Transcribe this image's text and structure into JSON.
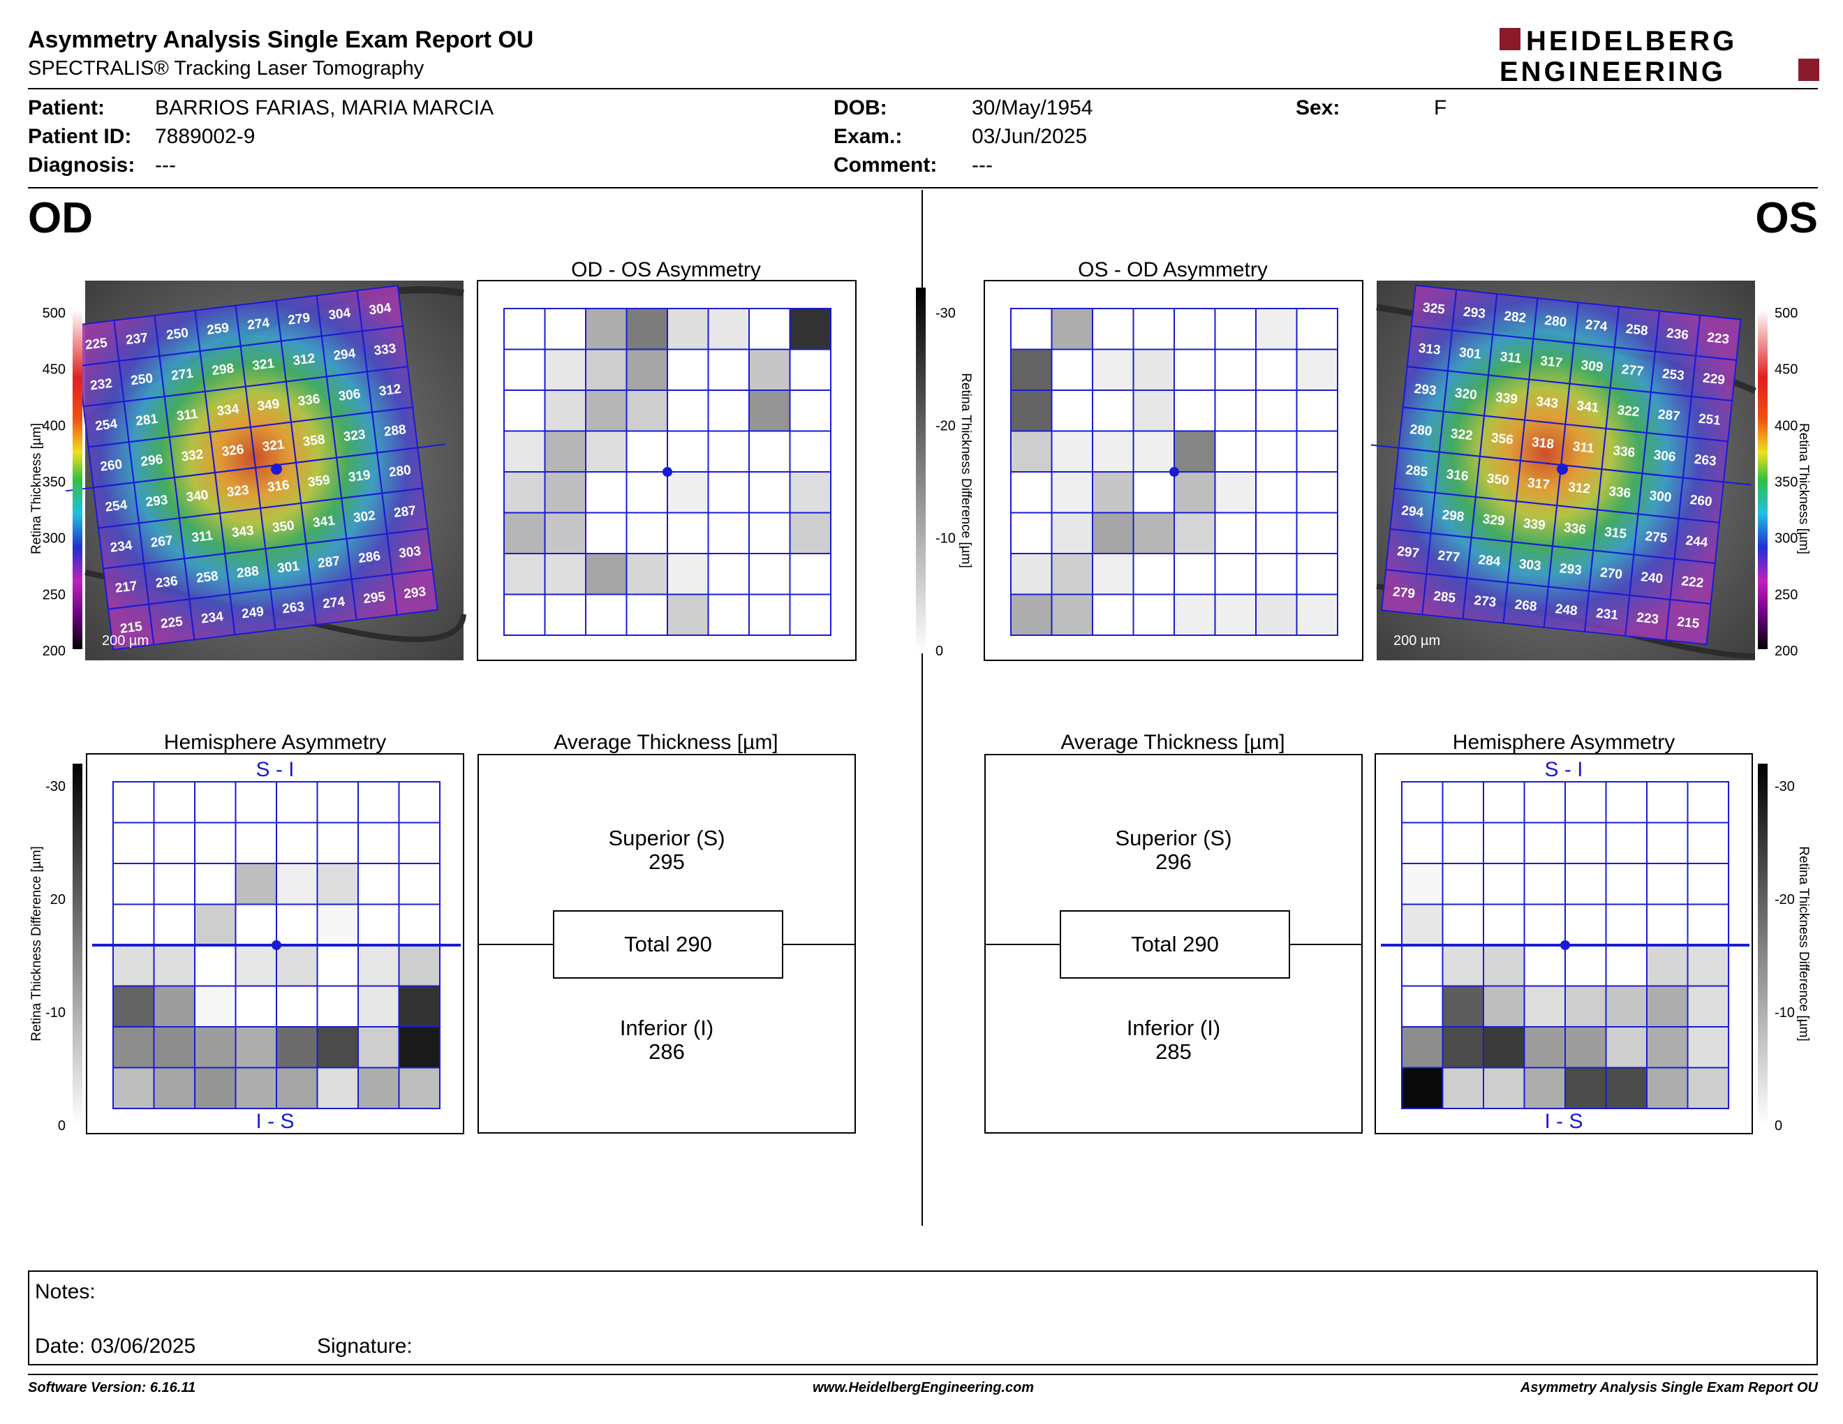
{
  "header": {
    "title": "Asymmetry Analysis Single Exam Report OU",
    "subtitle": "SPECTRALIS® Tracking Laser Tomography",
    "logo_line1": "HEIDELBERG",
    "logo_line2": "ENGINEERING",
    "brand_color": "#8b1a2b"
  },
  "patient": {
    "patient_label": "Patient:",
    "patient_value": "BARRIOS FARIAS, MARIA MARCIA",
    "id_label": "Patient ID:",
    "id_value": "7889002-9",
    "diagnosis_label": "Diagnosis:",
    "diagnosis_value": "---",
    "dob_label": "DOB:",
    "dob_value": "30/May/1954",
    "exam_label": "Exam.:",
    "exam_value": "03/Jun/2025",
    "comment_label": "Comment:",
    "comment_value": "---",
    "sex_label": "Sex:",
    "sex_value": "F"
  },
  "eyes": {
    "left": "OD",
    "right": "OS"
  },
  "titles": {
    "od_os": "OD - OS Asymmetry",
    "os_od": "OS - OD Asymmetry",
    "hemi": "Hemisphere Asymmetry",
    "avg": "Average Thickness [µm]",
    "si": "S - I",
    "is": "I - S",
    "scale_bar": "200 µm"
  },
  "axes": {
    "thickness_label": "Retina Thickness [µm]",
    "thickness_ticks": [
      "500",
      "450",
      "400",
      "350",
      "300",
      "250",
      "200"
    ],
    "diff_label": "Retina Thickness Difference [µm]",
    "diff_ticks_center": [
      "-30",
      "-20",
      "-10",
      "0"
    ],
    "diff_ticks_hemi_left": [
      "-30",
      "20",
      "-10",
      "0"
    ],
    "diff_ticks_hemi_right": [
      "-30",
      "-20",
      "-10",
      "0"
    ]
  },
  "thickness_od": [
    [
      225,
      237,
      250,
      259,
      274,
      279,
      304,
      304
    ],
    [
      232,
      250,
      271,
      298,
      321,
      312,
      294,
      333
    ],
    [
      254,
      281,
      311,
      334,
      349,
      336,
      306,
      312
    ],
    [
      260,
      296,
      332,
      326,
      321,
      358,
      323,
      288
    ],
    [
      254,
      293,
      340,
      323,
      316,
      359,
      319,
      280
    ],
    [
      234,
      267,
      311,
      343,
      350,
      341,
      302,
      287
    ],
    [
      217,
      236,
      258,
      288,
      301,
      287,
      286,
      303
    ],
    [
      215,
      225,
      234,
      249,
      263,
      274,
      295,
      293
    ]
  ],
  "thickness_os": [
    [
      325,
      293,
      282,
      280,
      274,
      258,
      236,
      223
    ],
    [
      313,
      301,
      311,
      317,
      309,
      277,
      253,
      229
    ],
    [
      293,
      320,
      339,
      343,
      341,
      322,
      287,
      251
    ],
    [
      280,
      322,
      356,
      318,
      311,
      336,
      306,
      263
    ],
    [
      285,
      316,
      350,
      317,
      312,
      336,
      300,
      260
    ],
    [
      294,
      298,
      329,
      339,
      336,
      315,
      275,
      244
    ],
    [
      297,
      277,
      284,
      303,
      293,
      270,
      240,
      222
    ],
    [
      279,
      285,
      273,
      268,
      248,
      231,
      223,
      215
    ]
  ],
  "asym_od_os": [
    [
      0,
      0,
      10,
      16,
      4,
      3,
      0,
      25
    ],
    [
      0,
      3,
      6,
      11,
      0,
      0,
      7,
      0
    ],
    [
      0,
      4,
      9,
      6,
      0,
      0,
      13,
      0
    ],
    [
      3,
      9,
      4,
      0,
      0,
      0,
      0,
      0
    ],
    [
      5,
      8,
      0,
      0,
      2,
      0,
      0,
      4
    ],
    [
      9,
      7,
      0,
      0,
      0,
      0,
      0,
      6
    ],
    [
      4,
      4,
      11,
      5,
      2,
      0,
      0,
      0
    ],
    [
      0,
      0,
      0,
      0,
      6,
      0,
      0,
      0
    ]
  ],
  "asym_os_od": [
    [
      0,
      10,
      0,
      0,
      0,
      0,
      2,
      0
    ],
    [
      19,
      0,
      2,
      3,
      0,
      0,
      0,
      2
    ],
    [
      19,
      0,
      0,
      3,
      0,
      0,
      0,
      0
    ],
    [
      6,
      2,
      2,
      2,
      15,
      0,
      0,
      0
    ],
    [
      0,
      2,
      7,
      0,
      8,
      2,
      0,
      0
    ],
    [
      0,
      3,
      11,
      9,
      5,
      0,
      0,
      0
    ],
    [
      3,
      6,
      2,
      0,
      0,
      0,
      0,
      0
    ],
    [
      10,
      8,
      0,
      0,
      2,
      2,
      3,
      2
    ]
  ],
  "hemi_od": [
    [
      0,
      0,
      0,
      0,
      0,
      0,
      0,
      0
    ],
    [
      0,
      0,
      0,
      0,
      0,
      0,
      0,
      0
    ],
    [
      0,
      0,
      0,
      8,
      2,
      4,
      0,
      0
    ],
    [
      0,
      0,
      6,
      0,
      0,
      1,
      0,
      0
    ],
    [
      4,
      4,
      0,
      3,
      4,
      0,
      3,
      6
    ],
    [
      19,
      12,
      1,
      0,
      0,
      0,
      3,
      25
    ],
    [
      14,
      14,
      12,
      10,
      18,
      22,
      6,
      28
    ],
    [
      8,
      11,
      13,
      10,
      11,
      4,
      10,
      8
    ]
  ],
  "hemi_os": [
    [
      0,
      0,
      0,
      0,
      0,
      0,
      0,
      0
    ],
    [
      0,
      0,
      0,
      0,
      0,
      0,
      0,
      0
    ],
    [
      1,
      0,
      0,
      0,
      0,
      0,
      0,
      0
    ],
    [
      3,
      0,
      0,
      0,
      0,
      0,
      0,
      0
    ],
    [
      0,
      4,
      5,
      0,
      0,
      0,
      5,
      4
    ],
    [
      0,
      20,
      8,
      4,
      6,
      7,
      10,
      4
    ],
    [
      14,
      22,
      24,
      12,
      12,
      6,
      10,
      4
    ],
    [
      30,
      6,
      6,
      10,
      22,
      22,
      10,
      6
    ]
  ],
  "avg_od": {
    "superior_label": "Superior (S)",
    "superior": "295",
    "total": "Total 290",
    "inferior_label": "Inferior (I)",
    "inferior": "286"
  },
  "avg_os": {
    "superior_label": "Superior (S)",
    "superior": "296",
    "total": "Total 290",
    "inferior_label": "Inferior (I)",
    "inferior": "285"
  },
  "notes": {
    "notes_label": "Notes:",
    "date_label": "Date: 03/06/2025",
    "signature_label": "Signature:"
  },
  "footer": {
    "version": "Software Version: 6.16.11",
    "website": "www.HeidelbergEngineering.com",
    "report": "Asymmetry Analysis Single Exam Report OU"
  },
  "colors": {
    "grid_line": "#1a1ad6",
    "foveal_dot": "#1a1ad6"
  }
}
